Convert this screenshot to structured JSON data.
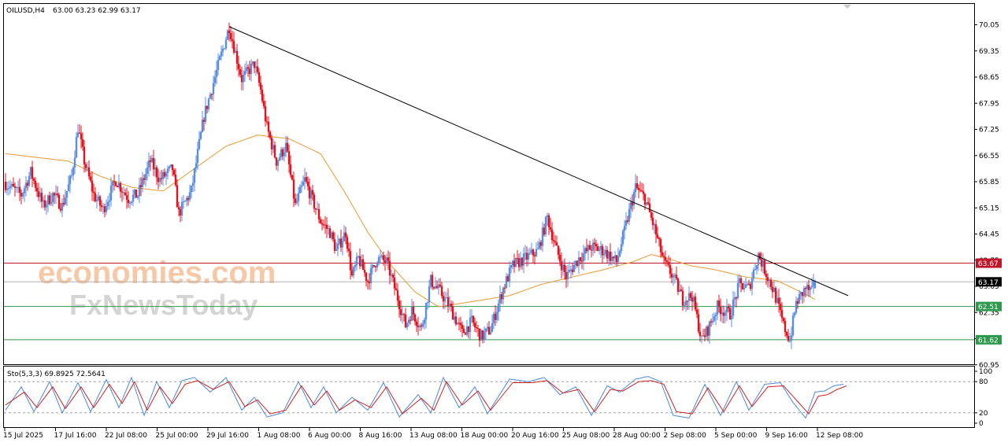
{
  "header": {
    "symbol_label": "OILUSD,H4",
    "ohlc_text": "63.00 63.23 62.99 63.17"
  },
  "watermark": {
    "line1_text": "economies.com",
    "line2_text": "FxNewsToday"
  },
  "colors": {
    "bull": "#5b8fdc",
    "bear": "#e0141e",
    "ma": "#e59a2f",
    "trendline": "#000000",
    "resistance": "#c0142a",
    "support": "#2e9a4e",
    "current_price_line": "#b0b0b0",
    "stoch_main": "#4a89d8",
    "stoch_signal": "#cc1f1f",
    "watermark1": "#f7c8a6",
    "watermark2": "#d4d4d4"
  },
  "chart_data": [
    {
      "type": "candlestick",
      "symbol": "OILUSD",
      "timeframe": "H4",
      "last_bar": {
        "open": 63.0,
        "high": 63.23,
        "low": 62.99,
        "close": 63.17
      },
      "ylim": [
        60.75,
        70.35
      ],
      "y_ticks": [
        "70.05",
        "69.35",
        "68.65",
        "67.95",
        "67.25",
        "66.55",
        "65.85",
        "65.15",
        "64.45",
        "63.75",
        "63.05",
        "62.35",
        "61.65",
        "60.95"
      ],
      "x_ticks": [
        "15 Jul 2025",
        "17 Jul 16:00",
        "22 Jul 08:00",
        "25 Jul 00:00",
        "29 Jul 16:00",
        "1 Aug 08:00",
        "6 Aug 00:00",
        "8 Aug 16:00",
        "13 Aug 08:00",
        "18 Aug 00:00",
        "20 Aug 16:00",
        "25 Aug 08:00",
        "28 Aug 00:00",
        "2 Sep 08:00",
        "5 Sep 00:00",
        "9 Sep 16:00",
        "12 Sep 08:00"
      ],
      "close_path": [
        [
          0,
          65.8
        ],
        [
          10,
          65.5
        ],
        [
          16,
          66.1
        ],
        [
          24,
          65.2
        ],
        [
          30,
          65.5
        ],
        [
          36,
          65.2
        ],
        [
          42,
          66.0
        ],
        [
          46,
          67.3
        ],
        [
          50,
          66.4
        ],
        [
          56,
          65.5
        ],
        [
          62,
          65.1
        ],
        [
          70,
          65.9
        ],
        [
          78,
          65.4
        ],
        [
          84,
          65.5
        ],
        [
          92,
          66.4
        ],
        [
          98,
          65.9
        ],
        [
          106,
          66.2
        ],
        [
          110,
          65.0
        ],
        [
          118,
          65.6
        ],
        [
          126,
          67.6
        ],
        [
          136,
          69.1
        ],
        [
          142,
          70.0
        ],
        [
          150,
          68.6
        ],
        [
          158,
          69.0
        ],
        [
          162,
          68.3
        ],
        [
          166,
          67.3
        ],
        [
          172,
          66.4
        ],
        [
          178,
          66.8
        ],
        [
          184,
          65.2
        ],
        [
          190,
          65.9
        ],
        [
          200,
          64.8
        ],
        [
          206,
          64.5
        ],
        [
          210,
          64.0
        ],
        [
          216,
          64.5
        ],
        [
          220,
          63.3
        ],
        [
          224,
          63.8
        ],
        [
          230,
          63.2
        ],
        [
          236,
          63.8
        ],
        [
          242,
          63.7
        ],
        [
          250,
          62.6
        ],
        [
          254,
          62.0
        ],
        [
          258,
          62.4
        ],
        [
          264,
          61.9
        ],
        [
          270,
          63.2
        ],
        [
          276,
          62.9
        ],
        [
          282,
          62.5
        ],
        [
          290,
          61.8
        ],
        [
          296,
          62.1
        ],
        [
          302,
          61.7
        ],
        [
          308,
          61.9
        ],
        [
          316,
          63.0
        ],
        [
          322,
          63.6
        ],
        [
          330,
          63.8
        ],
        [
          338,
          64.0
        ],
        [
          344,
          64.9
        ],
        [
          350,
          64.0
        ],
        [
          356,
          63.3
        ],
        [
          364,
          63.8
        ],
        [
          372,
          64.1
        ],
        [
          380,
          64.0
        ],
        [
          388,
          63.7
        ],
        [
          394,
          64.7
        ],
        [
          400,
          65.7
        ],
        [
          406,
          65.4
        ],
        [
          412,
          64.6
        ],
        [
          418,
          63.7
        ],
        [
          424,
          63.3
        ],
        [
          430,
          62.7
        ],
        [
          436,
          62.8
        ],
        [
          442,
          61.6
        ],
        [
          446,
          61.9
        ],
        [
          452,
          62.5
        ],
        [
          460,
          62.3
        ],
        [
          466,
          63.1
        ],
        [
          472,
          63.0
        ],
        [
          478,
          63.9
        ],
        [
          484,
          63.3
        ],
        [
          488,
          62.9
        ],
        [
          494,
          62.0
        ],
        [
          498,
          61.6
        ],
        [
          502,
          62.6
        ],
        [
          508,
          63.0
        ],
        [
          512,
          62.9
        ],
        [
          514,
          63.2
        ]
      ],
      "ma_path": [
        [
          0,
          66.6
        ],
        [
          20,
          66.5
        ],
        [
          40,
          66.4
        ],
        [
          60,
          66.0
        ],
        [
          80,
          65.7
        ],
        [
          100,
          65.6
        ],
        [
          120,
          66.2
        ],
        [
          140,
          66.8
        ],
        [
          160,
          67.1
        ],
        [
          180,
          67.0
        ],
        [
          200,
          66.6
        ],
        [
          215,
          65.6
        ],
        [
          230,
          64.5
        ],
        [
          245,
          63.6
        ],
        [
          260,
          62.9
        ],
        [
          275,
          62.5
        ],
        [
          290,
          62.6
        ],
        [
          305,
          62.7
        ],
        [
          320,
          62.8
        ],
        [
          340,
          63.1
        ],
        [
          360,
          63.3
        ],
        [
          380,
          63.5
        ],
        [
          398,
          63.7
        ],
        [
          410,
          63.9
        ],
        [
          420,
          63.8
        ],
        [
          435,
          63.6
        ],
        [
          450,
          63.5
        ],
        [
          470,
          63.3
        ],
        [
          490,
          63.2
        ],
        [
          505,
          62.9
        ],
        [
          514,
          62.7
        ]
      ],
      "trendline": [
        [
          142,
          70.0
        ],
        [
          535,
          62.8
        ]
      ],
      "horizontal_levels": [
        {
          "label": "63.67",
          "value": 63.67
        },
        {
          "label": "63.17",
          "value": 63.17
        },
        {
          "label": "62.51",
          "value": 62.51
        },
        {
          "label": "61.62",
          "value": 61.62
        }
      ]
    },
    {
      "type": "line",
      "indicator_label": "Sto(5,3,3) 69.8925 72.5641",
      "ylim": [
        0,
        100
      ],
      "y_ticks": [
        "100",
        "80",
        "20",
        "0"
      ],
      "levels": [
        80,
        20
      ],
      "series": [
        {
          "role": "main",
          "points": [
            [
              0,
              25
            ],
            [
              10,
              70
            ],
            [
              18,
              22
            ],
            [
              28,
              80
            ],
            [
              36,
              20
            ],
            [
              46,
              78
            ],
            [
              54,
              22
            ],
            [
              64,
              84
            ],
            [
              72,
              30
            ],
            [
              80,
              88
            ],
            [
              88,
              15
            ],
            [
              96,
              80
            ],
            [
              104,
              30
            ],
            [
              112,
              82
            ],
            [
              120,
              88
            ],
            [
              130,
              60
            ],
            [
              140,
              88
            ],
            [
              150,
              25
            ],
            [
              158,
              50
            ],
            [
              166,
              12
            ],
            [
              176,
              20
            ],
            [
              186,
              80
            ],
            [
              194,
              30
            ],
            [
              202,
              70
            ],
            [
              210,
              20
            ],
            [
              220,
              50
            ],
            [
              230,
              25
            ],
            [
              240,
              78
            ],
            [
              250,
              12
            ],
            [
              262,
              55
            ],
            [
              270,
              20
            ],
            [
              278,
              88
            ],
            [
              288,
              30
            ],
            [
              298,
              70
            ],
            [
              306,
              18
            ],
            [
              320,
              85
            ],
            [
              332,
              80
            ],
            [
              342,
              88
            ],
            [
              352,
              55
            ],
            [
              362,
              70
            ],
            [
              372,
              15
            ],
            [
              382,
              72
            ],
            [
              390,
              60
            ],
            [
              400,
              85
            ],
            [
              408,
              90
            ],
            [
              416,
              80
            ],
            [
              424,
              15
            ],
            [
              434,
              10
            ],
            [
              444,
              75
            ],
            [
              454,
              15
            ],
            [
              464,
              80
            ],
            [
              472,
              25
            ],
            [
              482,
              75
            ],
            [
              492,
              78
            ],
            [
              500,
              40
            ],
            [
              508,
              10
            ],
            [
              514,
              60
            ],
            [
              520,
              62
            ],
            [
              526,
              72
            ],
            [
              532,
              75
            ]
          ]
        },
        {
          "role": "signal",
          "points": [
            [
              0,
              35
            ],
            [
              12,
              60
            ],
            [
              20,
              30
            ],
            [
              30,
              70
            ],
            [
              38,
              28
            ],
            [
              48,
              70
            ],
            [
              56,
              30
            ],
            [
              66,
              75
            ],
            [
              74,
              38
            ],
            [
              82,
              80
            ],
            [
              90,
              25
            ],
            [
              98,
              70
            ],
            [
              106,
              38
            ],
            [
              114,
              75
            ],
            [
              122,
              82
            ],
            [
              132,
              65
            ],
            [
              142,
              80
            ],
            [
              152,
              32
            ],
            [
              160,
              45
            ],
            [
              168,
              18
            ],
            [
              178,
              25
            ],
            [
              188,
              72
            ],
            [
              196,
              35
            ],
            [
              204,
              62
            ],
            [
              212,
              25
            ],
            [
              222,
              45
            ],
            [
              232,
              30
            ],
            [
              242,
              70
            ],
            [
              252,
              18
            ],
            [
              264,
              48
            ],
            [
              272,
              25
            ],
            [
              280,
              80
            ],
            [
              290,
              35
            ],
            [
              300,
              62
            ],
            [
              308,
              25
            ],
            [
              322,
              78
            ],
            [
              334,
              78
            ],
            [
              344,
              82
            ],
            [
              354,
              58
            ],
            [
              364,
              65
            ],
            [
              374,
              22
            ],
            [
              384,
              65
            ],
            [
              392,
              62
            ],
            [
              402,
              80
            ],
            [
              410,
              82
            ],
            [
              418,
              75
            ],
            [
              426,
              22
            ],
            [
              436,
              18
            ],
            [
              446,
              68
            ],
            [
              456,
              22
            ],
            [
              466,
              72
            ],
            [
              474,
              32
            ],
            [
              484,
              70
            ],
            [
              494,
              72
            ],
            [
              502,
              45
            ],
            [
              510,
              18
            ],
            [
              516,
              52
            ],
            [
              522,
              55
            ],
            [
              528,
              65
            ],
            [
              534,
              72
            ]
          ]
        }
      ]
    }
  ]
}
